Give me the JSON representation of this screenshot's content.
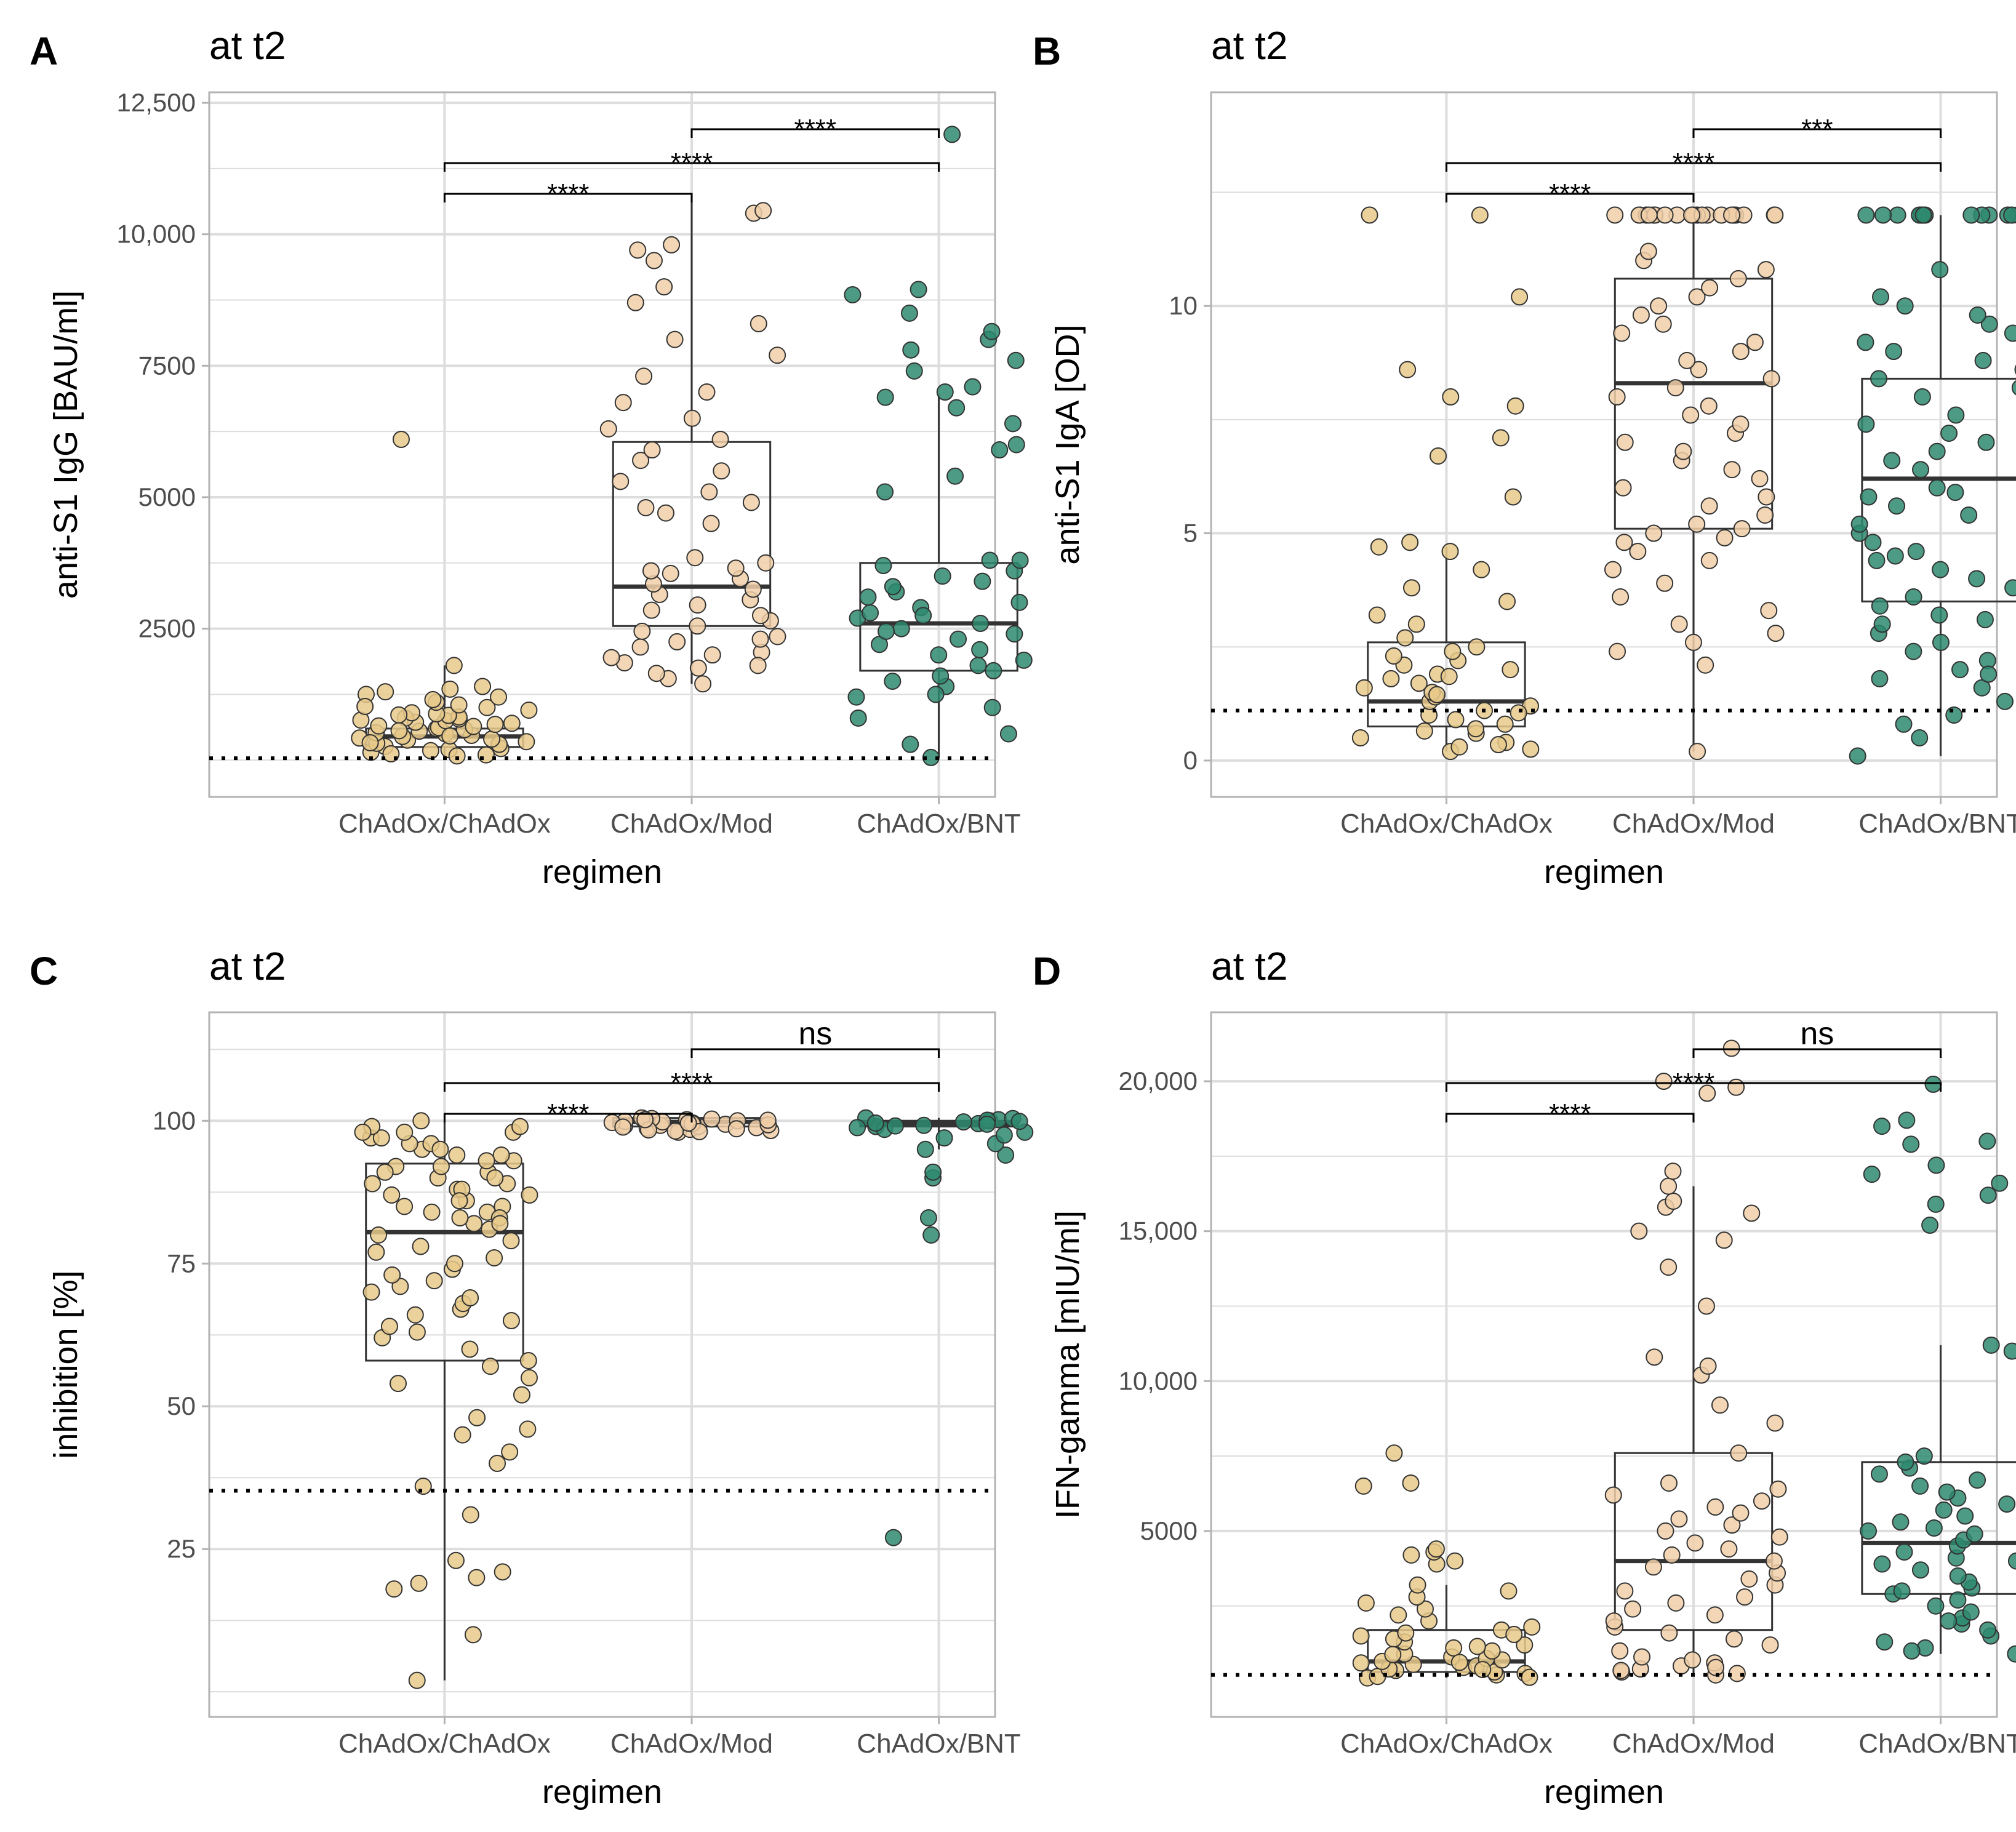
{
  "colors": {
    "ChAdOx/ChAdOx": "#E8C98A",
    "ChAdOx/Mod": "#F0CFA8",
    "ChAdOx/BNT": "#2E8A6E",
    "point_outline": "#333333",
    "box": "#333333",
    "grid": "#DDDDDD",
    "panel_border": "#B3B3B3",
    "tick_text": "#4D4D4D",
    "text": "#000000"
  },
  "chart_data": [
    {
      "panel_label": "A",
      "type": "box+scatter",
      "title": "at t2",
      "xlabel": "regimen",
      "ylabel": "anti-S1 IgG [BAU/ml]",
      "categories": [
        "ChAdOx/ChAdOx",
        "ChAdOx/Mod",
        "ChAdOx/BNT"
      ],
      "ylim": [
        -700,
        12700
      ],
      "yticks": [
        2500,
        5000,
        7500,
        10000,
        12500
      ],
      "ytick_labels": [
        "2500",
        "5000",
        "7500",
        "10,000",
        "12,500"
      ],
      "minor_yticks": [
        0,
        1250,
        3750,
        6250,
        8750,
        11250
      ],
      "threshold": 35.2,
      "boxes": [
        {
          "min": 50,
          "q1": 250,
          "median": 450,
          "q3": 600,
          "max": 1800
        },
        {
          "min": 1450,
          "q1": 2550,
          "median": 3300,
          "q3": 6050,
          "max": 10650
        },
        {
          "min": 50,
          "q1": 1700,
          "median": 2600,
          "q3": 3750,
          "max": 6950
        }
      ],
      "outliers": [
        [
          6100
        ],
        [],
        [
          7500,
          8000,
          8500,
          8850,
          8950,
          11900
        ]
      ],
      "points": [
        [
          100,
          150,
          180,
          220,
          260,
          300,
          320,
          350,
          380,
          400,
          420,
          450,
          470,
          500,
          520,
          550,
          580,
          600,
          620,
          650,
          680,
          700,
          720,
          750,
          780,
          800,
          820,
          850,
          880,
          900,
          950,
          1000,
          1050,
          1100,
          1150,
          1200,
          1250,
          1300,
          1350,
          1400,
          120,
          200,
          330,
          460,
          560,
          640,
          760,
          860,
          1020,
          6100,
          1800,
          80
        ],
        [
          1450,
          1550,
          1650,
          1750,
          1850,
          1950,
          2050,
          2150,
          2250,
          2350,
          2450,
          2550,
          2650,
          2750,
          2850,
          2950,
          3050,
          3150,
          3250,
          3350,
          3450,
          3550,
          3650,
          3750,
          3850,
          4500,
          4700,
          4900,
          5100,
          5300,
          5500,
          5700,
          5900,
          6100,
          6300,
          6500,
          6800,
          7000,
          7300,
          7700,
          8000,
          8300,
          8700,
          9000,
          9500,
          9700,
          9800,
          10400,
          10450,
          3600,
          2300,
          2000,
          1800,
          4800
        ],
        [
          50,
          300,
          500,
          800,
          1000,
          1200,
          1400,
          1500,
          1600,
          1700,
          1800,
          1900,
          2000,
          2100,
          2200,
          2300,
          2400,
          2500,
          2600,
          2700,
          2800,
          2900,
          3000,
          3100,
          3200,
          3300,
          3400,
          3500,
          3600,
          3700,
          3800,
          3800,
          5100,
          5400,
          5900,
          6000,
          6400,
          6700,
          6900,
          7000,
          7100,
          7400,
          7600,
          7800,
          8000,
          8150,
          8500,
          8850,
          8950,
          11900,
          1250,
          2450,
          2750
        ]
      ],
      "comparisons": [
        {
          "from": 0,
          "to": 1,
          "label": "****"
        },
        {
          "from": 0,
          "to": 2,
          "label": "****"
        },
        {
          "from": 1,
          "to": 2,
          "label": "****"
        }
      ]
    },
    {
      "panel_label": "B",
      "type": "box+scatter",
      "title": "at t2",
      "xlabel": "regimen",
      "ylabel": "anti-S1 IgA [OD]",
      "categories": [
        "ChAdOx/ChAdOx",
        "ChAdOx/Mod",
        "ChAdOx/BNT"
      ],
      "ylim": [
        -0.8,
        14.7
      ],
      "yticks": [
        0,
        5,
        10
      ],
      "ytick_labels": [
        "0",
        "5",
        "10"
      ],
      "minor_yticks": [
        2.5,
        7.5,
        12.5
      ],
      "threshold": 1.1,
      "boxes": [
        {
          "min": 0.2,
          "q1": 0.75,
          "median": 1.3,
          "q3": 2.6,
          "max": 4.7
        },
        {
          "min": 0.2,
          "q1": 5.1,
          "median": 8.3,
          "q3": 10.6,
          "max": 12.0
        },
        {
          "min": 0.1,
          "q1": 3.5,
          "median": 6.2,
          "q3": 8.4,
          "max": 12.0
        }
      ],
      "outliers": [
        [
          5.8,
          6.7,
          7.1,
          7.8,
          8.0,
          8.6,
          10.2,
          12.0,
          12.0
        ],
        [],
        []
      ],
      "points": [
        [
          0.2,
          0.3,
          0.4,
          0.5,
          0.6,
          0.7,
          0.8,
          0.9,
          1.0,
          1.1,
          1.2,
          1.3,
          1.4,
          1.5,
          1.6,
          1.7,
          1.8,
          1.9,
          2.0,
          2.1,
          2.2,
          2.3,
          2.5,
          2.7,
          3.0,
          3.2,
          3.5,
          3.8,
          4.2,
          4.6,
          4.7,
          5.8,
          6.7,
          7.1,
          7.8,
          8.0,
          8.6,
          10.2,
          12.0,
          12.0,
          0.35,
          0.65,
          1.05,
          1.45,
          1.85,
          2.4,
          0.25,
          4.8
        ],
        [
          0.2,
          2.1,
          2.4,
          2.6,
          2.8,
          3.0,
          3.3,
          3.6,
          3.9,
          4.2,
          4.4,
          4.6,
          4.8,
          5.0,
          5.2,
          5.4,
          5.6,
          5.8,
          6.0,
          6.2,
          6.4,
          6.6,
          6.8,
          7.0,
          7.2,
          7.4,
          7.6,
          7.8,
          8.0,
          8.2,
          8.4,
          8.6,
          8.8,
          9.0,
          9.2,
          9.4,
          9.6,
          9.8,
          10.0,
          10.2,
          10.4,
          10.6,
          10.8,
          11.0,
          11.2,
          12.0,
          12.0,
          12.0,
          12.0,
          12.0,
          12.0,
          12.0,
          12.0,
          12.0,
          12.0,
          12.0,
          12.0,
          12.0,
          12.0,
          12.0,
          12.0,
          12.0,
          12.0,
          12.0,
          12.0,
          12.0,
          5.1,
          4.9
        ],
        [
          0.1,
          0.5,
          0.8,
          1.0,
          1.3,
          1.6,
          1.8,
          2.0,
          2.2,
          2.4,
          2.6,
          2.8,
          3.0,
          3.2,
          3.4,
          3.6,
          3.8,
          4.0,
          4.2,
          4.4,
          4.6,
          4.8,
          5.0,
          5.2,
          5.4,
          5.6,
          5.8,
          6.0,
          6.2,
          6.4,
          6.6,
          6.8,
          7.0,
          7.2,
          7.4,
          7.6,
          7.8,
          8.0,
          8.2,
          8.4,
          8.6,
          8.8,
          9.0,
          9.2,
          9.4,
          9.6,
          9.8,
          10.0,
          10.2,
          10.8,
          12.0,
          12.0,
          12.0,
          12.0,
          12.0,
          12.0,
          12.0,
          12.0,
          12.0,
          12.0,
          12.0,
          12.0,
          12.0,
          12.0,
          1.9,
          3.1,
          4.5,
          5.9
        ]
      ],
      "comparisons": [
        {
          "from": 0,
          "to": 1,
          "label": "****"
        },
        {
          "from": 0,
          "to": 2,
          "label": "****"
        },
        {
          "from": 1,
          "to": 2,
          "label": "***"
        }
      ]
    },
    {
      "panel_label": "C",
      "type": "box+scatter",
      "title": "at t2",
      "xlabel": "regimen",
      "ylabel": "inhibition [%]",
      "categories": [
        "ChAdOx/ChAdOx",
        "ChAdOx/Mod",
        "ChAdOx/BNT"
      ],
      "ylim": [
        -4.4,
        119
      ],
      "yticks": [
        25,
        50,
        75,
        100
      ],
      "ytick_labels": [
        "25",
        "50",
        "75",
        "100"
      ],
      "minor_yticks": [
        0,
        12.5,
        37.5,
        62.5,
        87.5,
        112.5
      ],
      "threshold": 35.2,
      "boxes": [
        {
          "min": 2,
          "q1": 58,
          "median": 80.5,
          "q3": 92.5,
          "max": 100
        },
        {
          "min": 98,
          "q1": 99,
          "median": 99.8,
          "q3": 100.5,
          "max": 100.5
        },
        {
          "min": 95,
          "q1": 99,
          "median": 99.5,
          "q3": 100,
          "max": 100.5
        }
      ],
      "outliers": [
        [],
        [],
        [
          27,
          80,
          83,
          90,
          91,
          94,
          96
        ]
      ],
      "points": [
        [
          2,
          10,
          18,
          19,
          20,
          21,
          23,
          31,
          36,
          40,
          42,
          45,
          46,
          48,
          52,
          54,
          55,
          57,
          58,
          60,
          62,
          63,
          64,
          65,
          66,
          67,
          68,
          69,
          70,
          71,
          72,
          73,
          74,
          75,
          76,
          77,
          78,
          79,
          80,
          81,
          82,
          83,
          84,
          85,
          86,
          87,
          88,
          89,
          90,
          91,
          92,
          93,
          94,
          95,
          96,
          97,
          98,
          99,
          100,
          98,
          97,
          96,
          95,
          94,
          93,
          92,
          91,
          90,
          89,
          88,
          87,
          86,
          85,
          84,
          83,
          82,
          99,
          98
        ],
        [
          98.0,
          98.3,
          98.5,
          98.7,
          99.0,
          99.2,
          99.4,
          99.6,
          99.8,
          100.0,
          100.2,
          100.4,
          100.5,
          98.2,
          98.6,
          99.1,
          99.5,
          99.9,
          100.3,
          98.4,
          98.8,
          99.3,
          99.7,
          100.1,
          98.1,
          98.9,
          99.6,
          100.2
        ],
        [
          27,
          80,
          83,
          90,
          91,
          94,
          96,
          98,
          99,
          99.5,
          100,
          100.5,
          99.2,
          98.5,
          99.8,
          100.2,
          97,
          95,
          99.1,
          99.6,
          100.1,
          98.8,
          99.4,
          100.4,
          97.5,
          99.9
        ]
      ],
      "comparisons": [
        {
          "from": 0,
          "to": 1,
          "label": "****"
        },
        {
          "from": 0,
          "to": 2,
          "label": "****"
        },
        {
          "from": 1,
          "to": 2,
          "label": "ns"
        }
      ]
    },
    {
      "panel_label": "D",
      "type": "box+scatter",
      "title": "at t2",
      "xlabel": "regimen",
      "ylabel": "IFN-gamma [mIU/ml]",
      "categories": [
        "ChAdOx/ChAdOx",
        "ChAdOx/Mod",
        "ChAdOx/BNT"
      ],
      "ylim": [
        -1200,
        22300
      ],
      "yticks": [
        5000,
        10000,
        15000,
        20000
      ],
      "ytick_labels": [
        "5000",
        "10,000",
        "15,000",
        "20,000"
      ],
      "minor_yticks": [
        2500,
        7500,
        12500,
        17500
      ],
      "threshold": 200,
      "boxes": [
        {
          "min": 100,
          "q1": 300,
          "median": 650,
          "q3": 1700,
          "max": 3200
        },
        {
          "min": 200,
          "q1": 1700,
          "median": 4000,
          "q3": 7600,
          "max": 16500
        },
        {
          "min": 900,
          "q1": 2900,
          "median": 4600,
          "q3": 7300,
          "max": 11200
        }
      ],
      "outliers": [
        [
          3900,
          4000,
          4200,
          4300,
          4400,
          6500,
          6600,
          7600
        ],
        [
          17000,
          19800,
          20000,
          21100
        ],
        [
          15200,
          15900,
          16200,
          16600,
          16900,
          17200,
          17900,
          18000,
          18500,
          18700,
          19900
        ]
      ],
      "points": [
        [
          100,
          150,
          200,
          250,
          300,
          350,
          400,
          450,
          500,
          550,
          600,
          650,
          700,
          750,
          800,
          900,
          1000,
          1100,
          1200,
          1300,
          1400,
          1500,
          1600,
          1700,
          1800,
          2000,
          2200,
          2400,
          2600,
          2800,
          3000,
          3200,
          3900,
          4000,
          4200,
          4300,
          4400,
          6500,
          6600,
          7600,
          120,
          380,
          620,
          880,
          1150,
          1550
        ],
        [
          200,
          300,
          400,
          500,
          600,
          800,
          1000,
          1200,
          1400,
          1600,
          1800,
          2000,
          2200,
          2400,
          2600,
          2800,
          3000,
          3200,
          3400,
          3600,
          3800,
          4000,
          4200,
          4400,
          4600,
          4800,
          5000,
          5200,
          5400,
          5600,
          5800,
          6000,
          6200,
          6400,
          6600,
          7600,
          8600,
          9200,
          10200,
          10500,
          10800,
          12500,
          13800,
          14700,
          15000,
          15600,
          15800,
          16000,
          16500,
          17000,
          19800,
          20000,
          21100,
          19600,
          250,
          350,
          450,
          700
        ],
        [
          900,
          1100,
          1300,
          1500,
          1700,
          1900,
          2100,
          2300,
          2500,
          2700,
          2900,
          3100,
          3300,
          3500,
          3700,
          3900,
          4100,
          4300,
          4500,
          4700,
          4900,
          5100,
          5300,
          5500,
          5700,
          5900,
          6100,
          6300,
          6500,
          6700,
          6900,
          7100,
          7300,
          7500,
          11000,
          11200,
          15200,
          15900,
          16200,
          16600,
          16900,
          17200,
          17900,
          18000,
          18500,
          18700,
          19900,
          1000,
          2000,
          3000,
          4000,
          5000
        ]
      ],
      "comparisons": [
        {
          "from": 0,
          "to": 1,
          "label": "****"
        },
        {
          "from": 0,
          "to": 2,
          "label": "****"
        },
        {
          "from": 1,
          "to": 2,
          "label": "ns"
        }
      ]
    }
  ]
}
